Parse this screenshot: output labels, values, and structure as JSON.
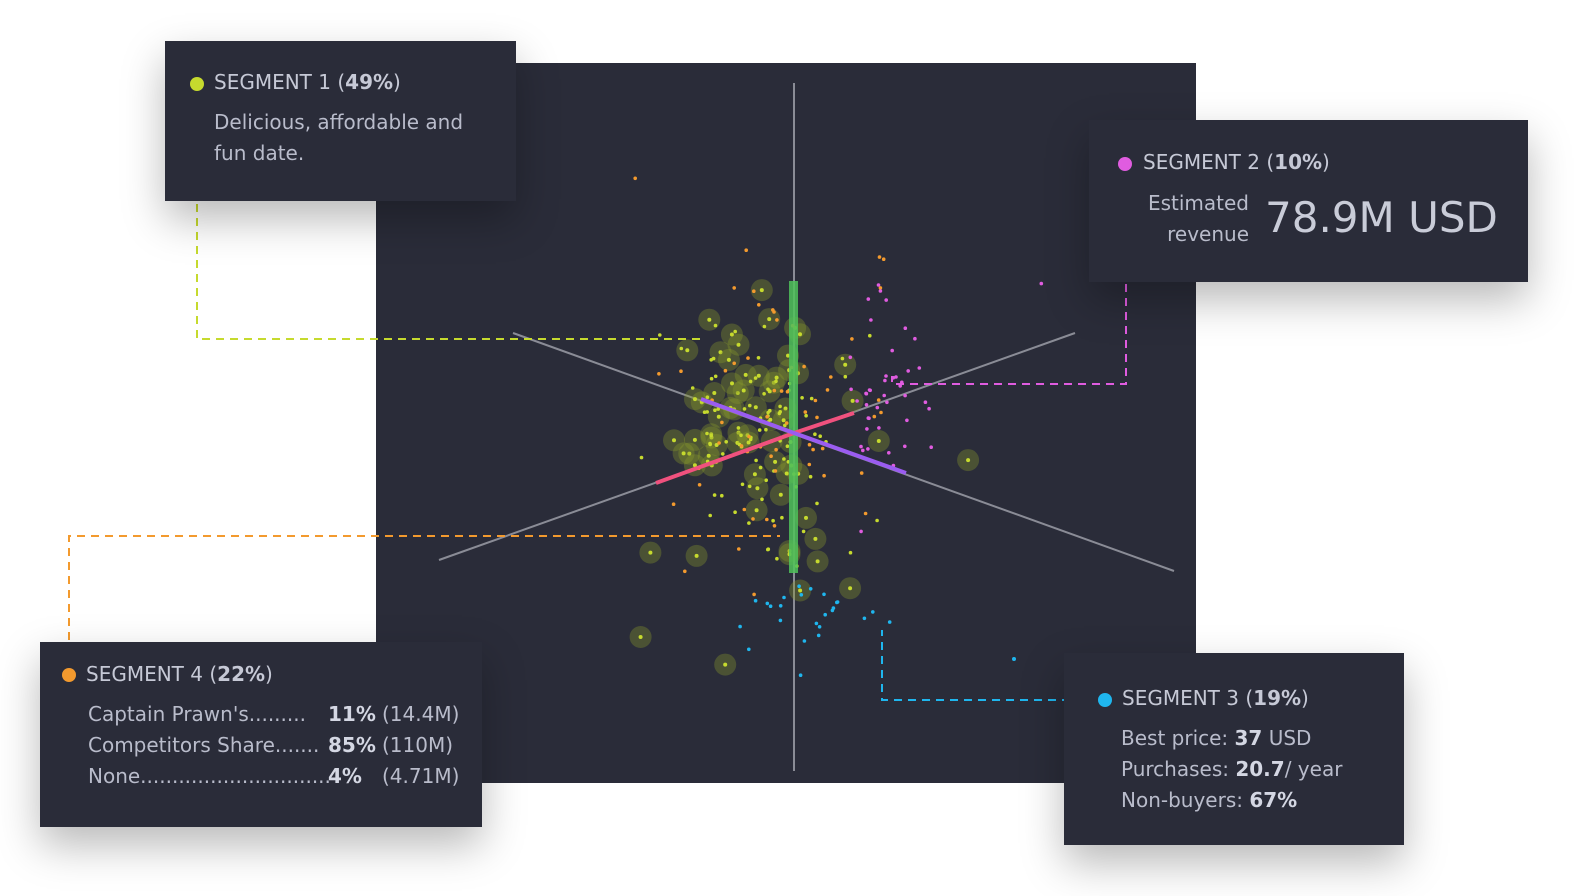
{
  "colors": {
    "segment1": "#c6da2e",
    "segment2": "#e05ce0",
    "segment3": "#1fb6ee",
    "segment4": "#f39a2e",
    "background": "#2a2c39"
  },
  "segment1": {
    "title": "SEGMENT 1",
    "pct": "49%",
    "line1": "Delicious, affordable and",
    "line2": "fun date."
  },
  "segment2": {
    "title": "SEGMENT 2",
    "pct": "10%",
    "label1": "Estimated",
    "label2": "revenue",
    "value": "78.9M USD"
  },
  "segment3": {
    "title": "SEGMENT 3",
    "pct": "19%",
    "best_price_label": "Best price: ",
    "best_price_value": "37",
    "best_price_unit": " USD",
    "purchases_label": "Purchases: ",
    "purchases_value": "20.7",
    "purchases_unit": "/ year",
    "nonbuyers_label": "Non-buyers: ",
    "nonbuyers_value": "67%"
  },
  "segment4": {
    "title": "SEGMENT 4",
    "pct": "22%",
    "rows": [
      {
        "label": "Captain Prawn's.........",
        "value": "11%",
        "amount": "(14.4M)"
      },
      {
        "label": "Competitors Share.......",
        "value": "85%",
        "amount": "(110M)"
      },
      {
        "label": "None..............................",
        "value": "4%",
        "amount": "(4.71M)"
      }
    ]
  },
  "chart_data": {
    "type": "scatter",
    "title": "",
    "segments": [
      {
        "name": "SEGMENT 1",
        "share": 49
      },
      {
        "name": "SEGMENT 2",
        "share": 10
      },
      {
        "name": "SEGMENT 3",
        "share": 19
      },
      {
        "name": "SEGMENT 4",
        "share": 22
      }
    ]
  }
}
